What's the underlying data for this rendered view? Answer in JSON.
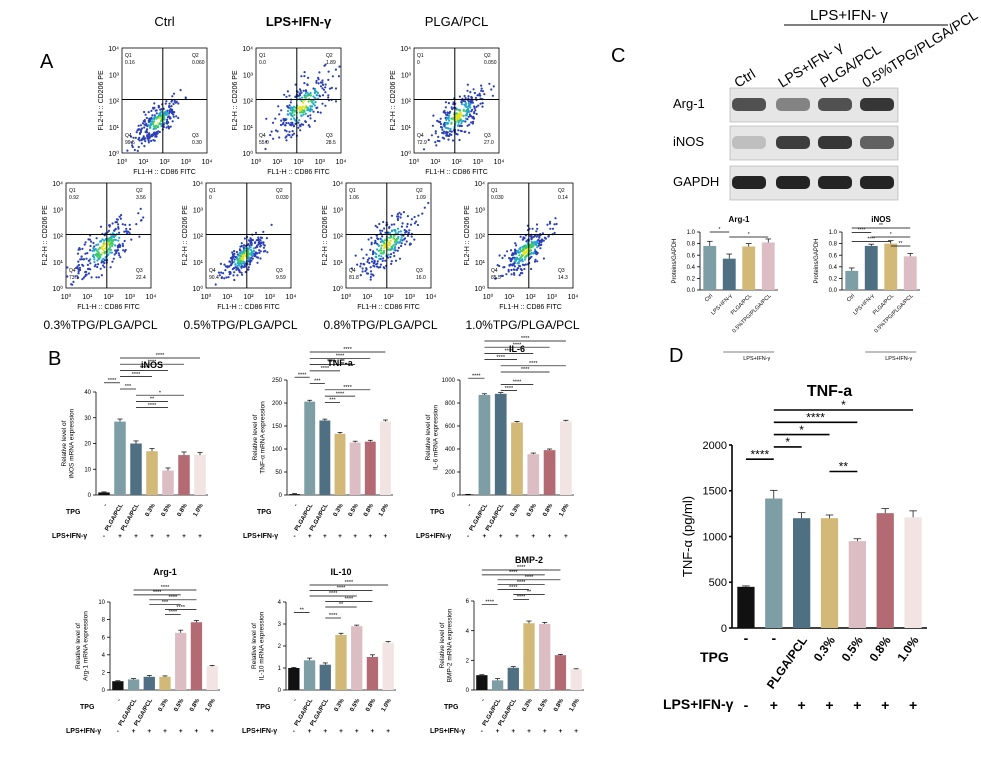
{
  "panels": {
    "A": "A",
    "B": "B",
    "C": "C",
    "D": "D"
  },
  "colors": {
    "black": "#111111",
    "teal": "#7e9ea5",
    "steel": "#4f7082",
    "gold": "#d3b977",
    "pink": "#ddbdc4",
    "rose": "#b46a72",
    "blush": "#f2e4e2",
    "wb_bg": "#e6e6e6",
    "wb_band": "#1c1c1c"
  },
  "panel_a": {
    "y_axis_label": "FL2-H :: CD206 PE",
    "x_axis_label": "FL1-H :: CD86 FITC",
    "ticks": [
      "10⁰",
      "10¹",
      "10²",
      "10³",
      "10⁴"
    ],
    "plots": [
      {
        "title": "Ctrl",
        "q1": "0.16",
        "q2": "0.060",
        "q3": "0.30",
        "q4": "99.5"
      },
      {
        "title": "LPS+IFN-γ",
        "q1": "0.0",
        "q2": "1.89",
        "q3": "28.5",
        "q4": "55.0"
      },
      {
        "title": "PLGA/PCL",
        "q1": "0",
        "q2": "0.050",
        "q3": "27.0",
        "q4": "72.9"
      },
      {
        "title": "0.3%TPG/PLGA/PCL",
        "q1": "0.92",
        "q2": "3.56",
        "q3": "22.4",
        "q4": "73.1"
      },
      {
        "title": "0.5%TPG/PLGA/PCL",
        "q1": "0",
        "q2": "0.030",
        "q3": "9.59",
        "q4": "90.4"
      },
      {
        "title": "0.8%TPG/PLGA/PCL",
        "q1": "1.06",
        "q2": "1.09",
        "q3": "16.0",
        "q4": "81.8"
      },
      {
        "title": "1.0%TPG/PLGA/PCL",
        "q1": "0.030",
        "q2": "0.14",
        "q3": "14.3",
        "q4": "85.5"
      }
    ]
  },
  "row_labels": {
    "tpg": "TPG",
    "lps": "LPS+IFN-γ",
    "plus": "+",
    "minus": "-"
  },
  "panel_c": {
    "header": "LPS+IFN- γ",
    "lanes": [
      "Ctrl",
      "LPS+IFN- γ",
      "PLGA/PCL",
      "0.5%TPG/PLGA/PCL"
    ],
    "proteins": [
      "Arg-1",
      "iNOS",
      "GAPDH"
    ],
    "band_intensity": {
      "Arg-1": [
        0.7,
        0.4,
        0.7,
        0.85
      ],
      "iNOS": [
        0.05,
        0.8,
        0.85,
        0.6
      ],
      "GAPDH": [
        0.95,
        0.95,
        0.95,
        0.95
      ]
    }
  }
}
